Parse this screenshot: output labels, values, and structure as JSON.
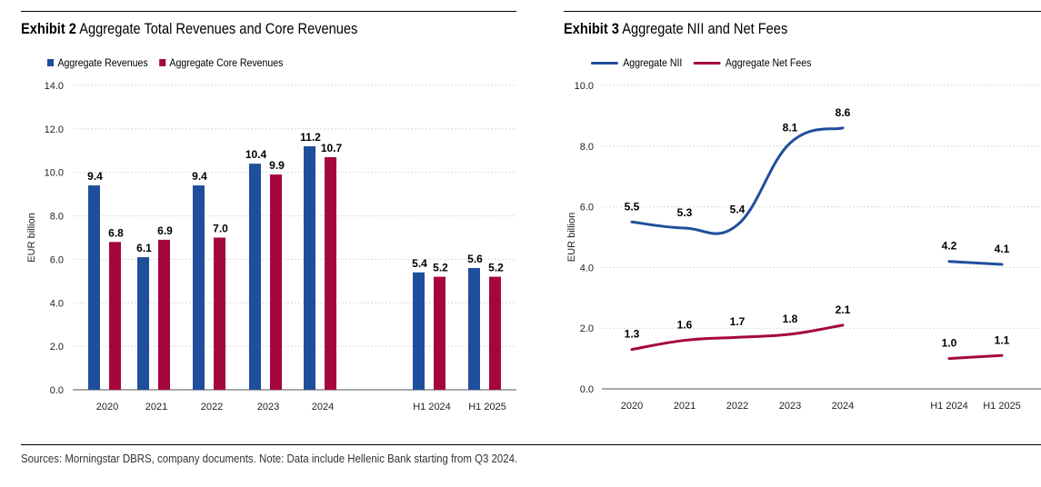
{
  "chart_data": [
    {
      "type": "bar",
      "exhibit": "Exhibit 2",
      "title": "Aggregate Total Revenues and Core Revenues",
      "ylabel": "EUR billion",
      "xlabel": "",
      "ylim": [
        0,
        14
      ],
      "yticks": [
        "0.0",
        "2.0",
        "4.0",
        "6.0",
        "8.0",
        "10.0",
        "12.0",
        "14.0"
      ],
      "categories": [
        "2020",
        "2021",
        "2022",
        "2023",
        "2024",
        "H1 2024",
        "H1 2025"
      ],
      "series": [
        {
          "name": "Aggregate Revenues",
          "color": "#1f4e9c",
          "values": [
            9.4,
            6.1,
            9.4,
            10.4,
            11.2,
            5.4,
            5.6
          ],
          "labels": [
            "9.4",
            "6.1",
            "9.4",
            "10.4",
            "11.2",
            "5.4",
            "5.6"
          ]
        },
        {
          "name": "Aggregate Core Revenues",
          "color": "#a5073d",
          "values": [
            6.8,
            6.9,
            7.0,
            9.9,
            10.7,
            5.2,
            5.2
          ],
          "labels": [
            "6.8",
            "6.9",
            "7.0",
            "9.9",
            "10.7",
            "5.2",
            "5.2"
          ]
        }
      ],
      "grid": true,
      "legend": "top-left"
    },
    {
      "type": "line",
      "exhibit": "Exhibit 3",
      "title": "Aggregate NII and Net Fees",
      "ylabel": "EUR billion",
      "xlabel": "",
      "ylim": [
        0,
        10
      ],
      "yticks": [
        "0.0",
        "2.0",
        "4.0",
        "6.0",
        "8.0",
        "10.0"
      ],
      "categories": [
        "2020",
        "2021",
        "2022",
        "2023",
        "2024",
        "H1 2024",
        "H1 2025"
      ],
      "series": [
        {
          "name": "Aggregate NII",
          "color": "#1f4e9c",
          "values": [
            5.5,
            5.3,
            5.4,
            8.1,
            8.6,
            4.2,
            4.1
          ],
          "labels": [
            "5.5",
            "5.3",
            "5.4",
            "8.1",
            "8.6",
            "4.2",
            "4.1"
          ]
        },
        {
          "name": "Aggregate Net Fees",
          "color": "#a5073d",
          "values": [
            1.3,
            1.6,
            1.7,
            1.8,
            2.1,
            1.0,
            1.1
          ],
          "labels": [
            "1.3",
            "1.6",
            "1.7",
            "1.8",
            "2.1",
            "1.0",
            "1.1"
          ]
        }
      ],
      "grid": true,
      "legend": "top-left"
    }
  ],
  "footer": {
    "source": "Sources: Morningstar DBRS, company documents. Note: Data include Hellenic Bank starting from Q3 2024."
  }
}
